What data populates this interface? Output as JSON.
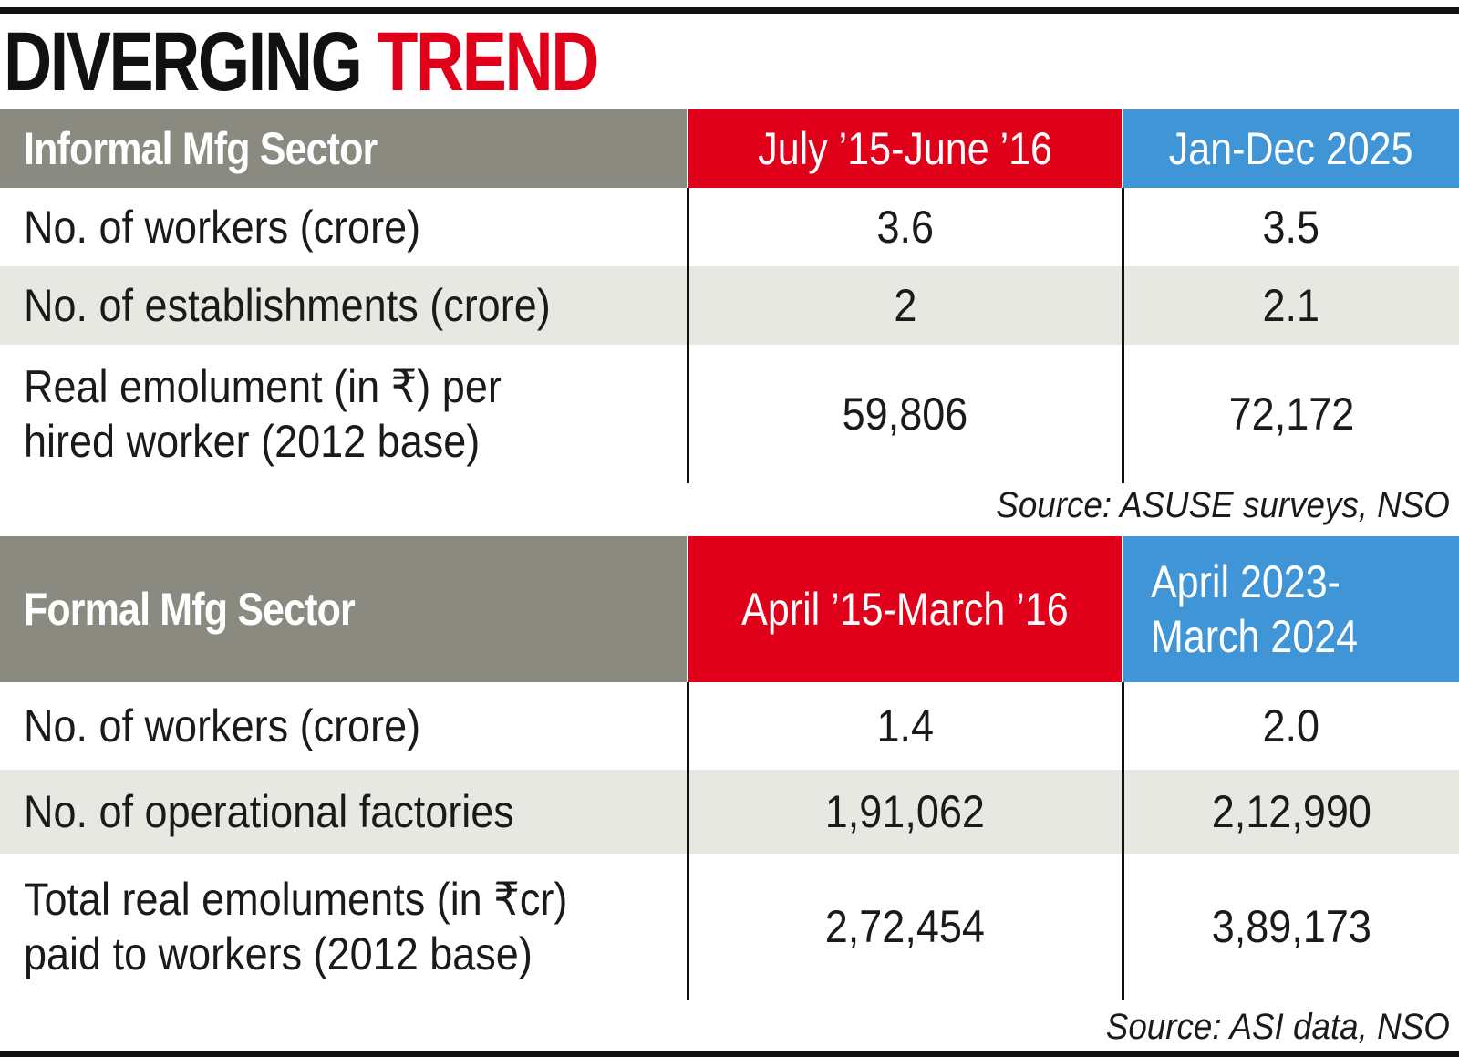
{
  "title": {
    "part1": "DIVERGING",
    "part2": "TREND"
  },
  "colors": {
    "accent_red": "#e1001a",
    "accent_blue": "#3f95d6",
    "header_gray": "#8a8a80",
    "row_shade": "#e8e8e3"
  },
  "chart_data": [
    {
      "type": "table",
      "columns": [
        "Informal Mfg Sector",
        "July ’15-June ’16",
        "Jan-Dec 2025"
      ],
      "rows": [
        [
          "No. of workers (crore)",
          "3.6",
          "3.5"
        ],
        [
          "No. of establishments (crore)",
          "2",
          "2.1"
        ],
        [
          "Real emolument (in ₹) per hired worker (2012 base)",
          "59,806",
          "72,172"
        ]
      ],
      "source": "Source: ASUSE surveys, NSO"
    },
    {
      "type": "table",
      "columns": [
        "Formal Mfg Sector",
        "April ’15-March ’16",
        "April 2023-March 2024"
      ],
      "rows": [
        [
          "No. of workers (crore)",
          "1.4",
          "2.0"
        ],
        [
          "No. of operational factories",
          "1,91,062",
          "2,12,990"
        ],
        [
          "Total real emoluments (in ₹cr) paid to workers (2012 base)",
          "2,72,454",
          "3,89,173"
        ]
      ],
      "source": "Source: ASI data, NSO"
    }
  ]
}
